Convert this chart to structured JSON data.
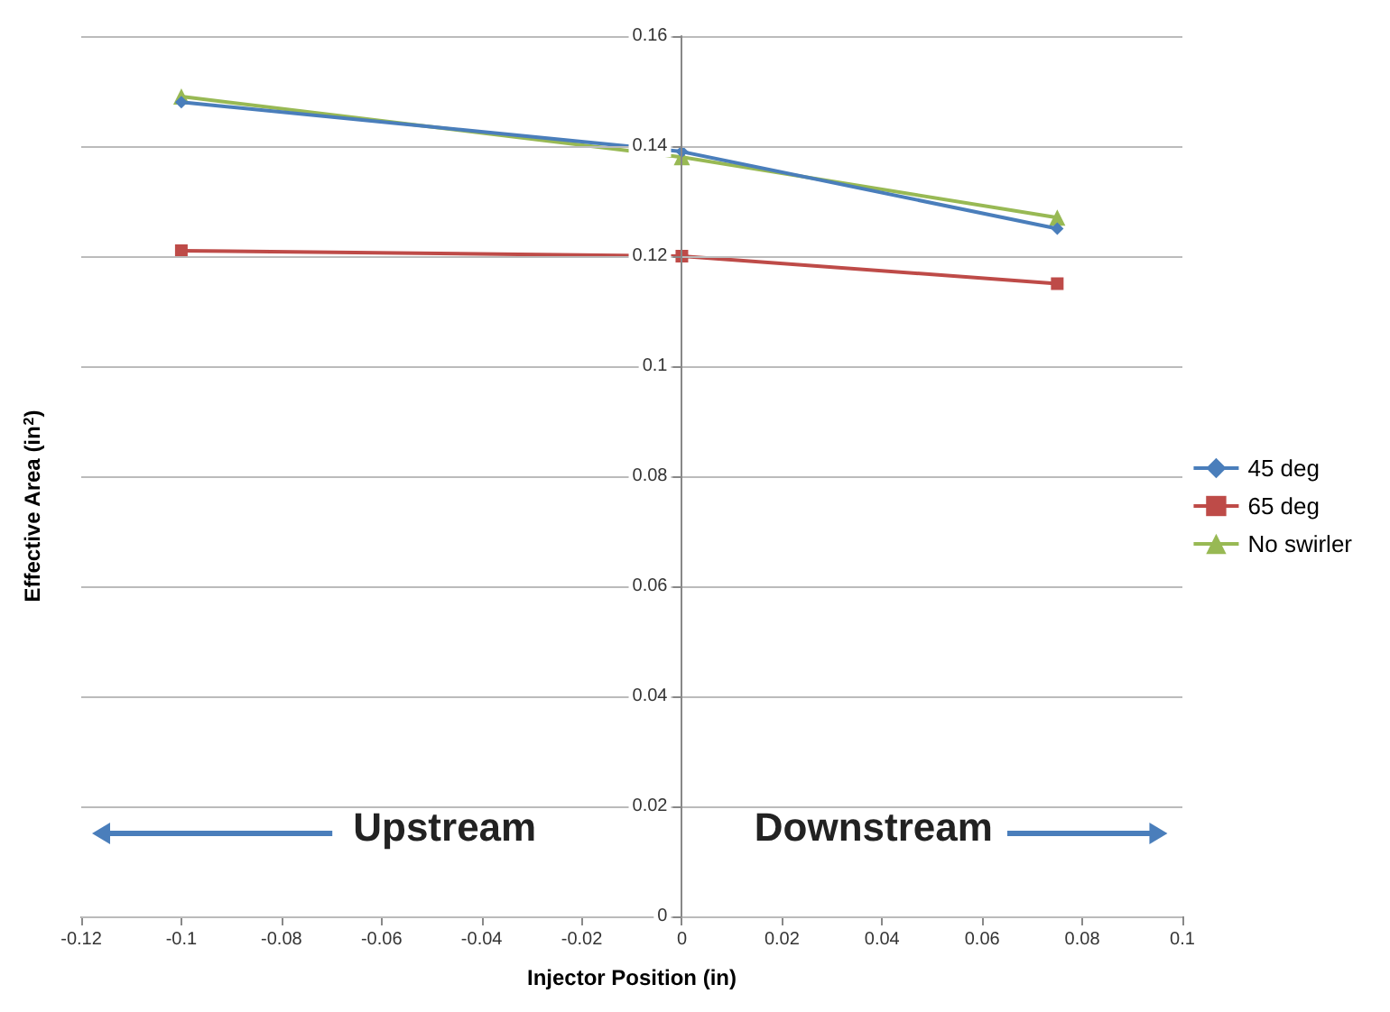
{
  "chart_data": {
    "type": "line",
    "xlabel": "Injector Position (in)",
    "ylabel": "Effective Area (in$^{2}$)",
    "x": [
      -0.1,
      0,
      0.075
    ],
    "series": [
      {
        "name": "45 deg",
        "color": "#4a7ebb",
        "values": [
          0.148,
          0.139,
          0.125
        ],
        "marker": "diamond"
      },
      {
        "name": "65 deg",
        "color": "#be4b48",
        "values": [
          0.121,
          0.12,
          0.115
        ],
        "marker": "square"
      },
      {
        "name": "No swirler",
        "color": "#98b954",
        "values": [
          0.149,
          0.138,
          0.127
        ],
        "marker": "triangle"
      }
    ],
    "xlim": [
      -0.12,
      0.1
    ],
    "xticks": [
      -0.12,
      -0.1,
      -0.08,
      -0.06,
      -0.04,
      -0.02,
      0,
      0.02,
      0.04,
      0.06,
      0.08,
      0.1
    ],
    "ylim": [
      0,
      0.16
    ],
    "yticks": [
      0,
      0.02,
      0.04,
      0.06,
      0.08,
      0.1,
      0.12,
      0.14,
      0.16
    ],
    "grid": "y",
    "legend": "right",
    "line_style": "solid",
    "annotations": [
      "Upstream",
      "Downstream"
    ]
  }
}
